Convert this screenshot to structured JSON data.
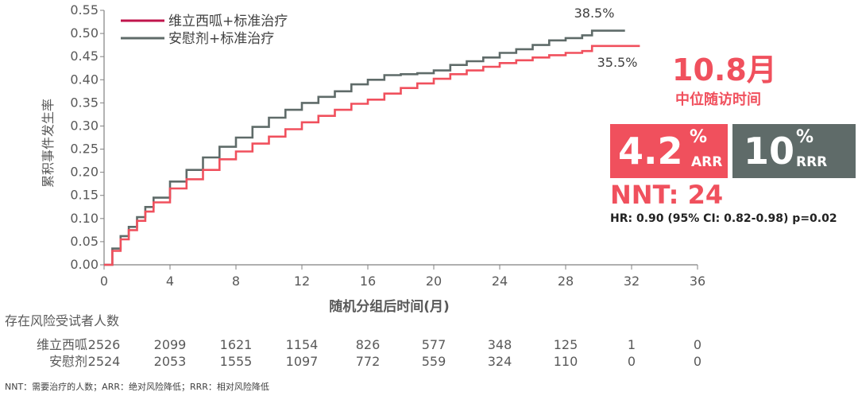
{
  "chart_data": {
    "type": "line",
    "step": true,
    "xlabel": "随机分组后时间(月)",
    "ylabel": "累积事件发生率",
    "xlim": [
      0,
      36
    ],
    "ylim": [
      0,
      0.55
    ],
    "xticks": [
      0,
      4,
      8,
      12,
      16,
      20,
      24,
      28,
      32,
      36
    ],
    "yticks": [
      "0.00",
      "0.05",
      "0.10",
      "0.15",
      "0.20",
      "0.25",
      "0.30",
      "0.35",
      "0.40",
      "0.45",
      "0.50",
      "0.55"
    ],
    "grid": false,
    "legend_position": "top-left",
    "series": [
      {
        "name": "维立西呱+标准治疗",
        "color": "#f0505d",
        "legend_color": "#c0144c",
        "end_label": "35.5%",
        "x": [
          0,
          0.5,
          1,
          1.5,
          2,
          2.5,
          3,
          4,
          5,
          6,
          7,
          8,
          9,
          10,
          11,
          12,
          13,
          14,
          15,
          16,
          17,
          18,
          19,
          20,
          21,
          22,
          23,
          24,
          25,
          26,
          27,
          28,
          29,
          29.6,
          29.6,
          32.5
        ],
        "y": [
          0,
          0.03,
          0.055,
          0.075,
          0.095,
          0.115,
          0.135,
          0.165,
          0.185,
          0.205,
          0.228,
          0.245,
          0.262,
          0.277,
          0.293,
          0.308,
          0.322,
          0.335,
          0.348,
          0.357,
          0.37,
          0.382,
          0.392,
          0.402,
          0.412,
          0.42,
          0.428,
          0.436,
          0.442,
          0.448,
          0.453,
          0.458,
          0.462,
          0.462,
          0.473,
          0.473
        ]
      },
      {
        "name": "安慰剂+标准治疗",
        "color": "#5f6b69",
        "legend_color": "#5f6b69",
        "end_label": "38.5%",
        "x": [
          0,
          0.5,
          1,
          1.5,
          2,
          2.5,
          3,
          4,
          5,
          6,
          7,
          8,
          9,
          10,
          11,
          12,
          13,
          14,
          15,
          16,
          17,
          18,
          19,
          20,
          21,
          22,
          23,
          24,
          25,
          26,
          27,
          28,
          29,
          29.6,
          29.6,
          31.6
        ],
        "y": [
          0,
          0.035,
          0.062,
          0.082,
          0.103,
          0.125,
          0.145,
          0.18,
          0.205,
          0.232,
          0.255,
          0.275,
          0.298,
          0.318,
          0.335,
          0.35,
          0.363,
          0.375,
          0.39,
          0.4,
          0.41,
          0.412,
          0.414,
          0.42,
          0.432,
          0.44,
          0.448,
          0.458,
          0.466,
          0.475,
          0.485,
          0.49,
          0.496,
          0.5,
          0.506,
          0.506
        ]
      }
    ]
  },
  "stats": {
    "median_value": "10.8月",
    "median_label": "中位随访时间",
    "arr_value": "4.2",
    "arr_pct": "%",
    "arr_label": "ARR",
    "rrr_value": "10",
    "rrr_pct": "%",
    "rrr_label": "RRR",
    "nnt": "NNT: 24",
    "hr": "HR: 0.90 (95% CI: 0.82-0.98) p=0.02"
  },
  "risk_table": {
    "title": "存在风险受试者人数",
    "rows": [
      {
        "label": "维立西呱",
        "values": [
          "2526",
          "2099",
          "1621",
          "1154",
          "826",
          "577",
          "348",
          "125",
          "1",
          "0"
        ]
      },
      {
        "label": "安慰剂",
        "values": [
          "2524",
          "2053",
          "1555",
          "1097",
          "772",
          "559",
          "324",
          "110",
          "0",
          "0"
        ]
      }
    ]
  },
  "footnote": "NNT：需要治疗的人数；ARR：绝对风险降低；RRR：相对风险降低"
}
